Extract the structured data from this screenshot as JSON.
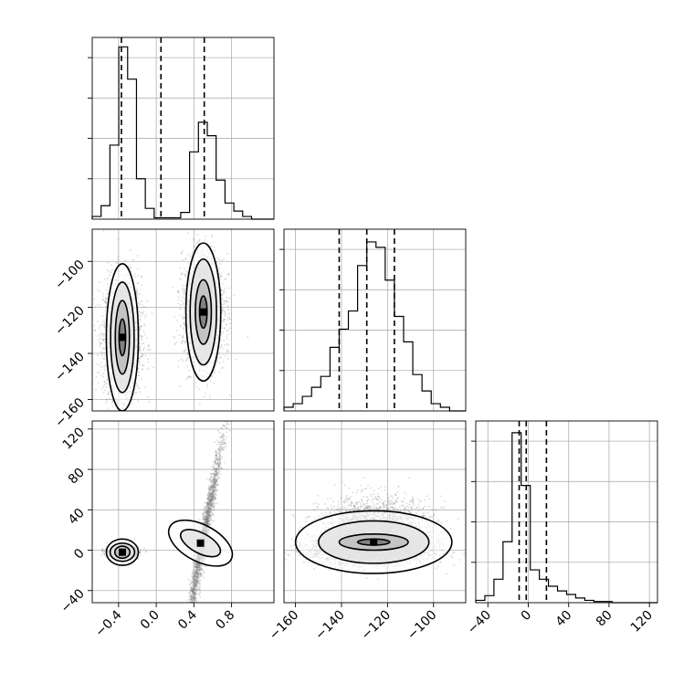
{
  "chart_data": {
    "type": "corner",
    "grid": true,
    "colors": {
      "line": "#000000",
      "grid": "#b0b0b0",
      "scatter": "#7a7a7a",
      "density_dark": "#000000"
    },
    "parameters": [
      {
        "index": 0,
        "range": [
          -0.68,
          1.25
        ],
        "ticks": [
          -0.4,
          0.0,
          0.4,
          0.8
        ],
        "tick_labels": [
          "−0.4",
          "0.0",
          "0.4",
          "0.8"
        ]
      },
      {
        "index": 1,
        "range": [
          -165,
          -86
        ],
        "ticks": [
          -160,
          -140,
          -120,
          -100
        ],
        "tick_labels": [
          "−160",
          "−140",
          "−120",
          "−100"
        ]
      },
      {
        "index": 2,
        "range": [
          -52,
          128
        ],
        "ticks": [
          -40,
          0,
          40,
          80,
          120
        ],
        "tick_labels": [
          "−40",
          "0",
          "40",
          "80",
          "120"
        ]
      }
    ],
    "histograms": [
      {
        "param": 0,
        "bin_edges": [
          -0.68,
          -0.586,
          -0.492,
          -0.398,
          -0.304,
          -0.21,
          -0.116,
          -0.022,
          0.072,
          0.166,
          0.26,
          0.354,
          0.448,
          0.542,
          0.636,
          0.73,
          0.824,
          0.918,
          1.012,
          1.106,
          1.25
        ],
        "counts": [
          2,
          10,
          55,
          128,
          104,
          30,
          8,
          1,
          1,
          1,
          5,
          50,
          72,
          62,
          29,
          12,
          6,
          2,
          0,
          0
        ],
        "ymax": 135,
        "quantiles": [
          -0.37,
          0.05,
          0.51
        ]
      },
      {
        "param": 1,
        "bin_edges": [
          -165,
          -161,
          -157,
          -153,
          -149,
          -145,
          -141,
          -137,
          -133,
          -129,
          -125,
          -121,
          -117,
          -113,
          -109,
          -105,
          -101,
          -97,
          -93,
          -89,
          -86
        ],
        "counts": [
          2,
          4,
          8,
          13,
          19,
          35,
          45,
          55,
          80,
          93,
          90,
          72,
          52,
          38,
          20,
          11,
          4,
          2,
          0,
          0
        ],
        "ymax": 100,
        "quantiles": [
          -141,
          -129,
          -117
        ]
      },
      {
        "param": 2,
        "bin_edges": [
          -52,
          -43,
          -34,
          -25,
          -16,
          -7,
          2,
          11,
          20,
          29,
          38,
          47,
          56,
          65,
          74,
          83,
          92,
          101,
          110,
          119,
          128
        ],
        "counts": [
          2,
          6,
          20,
          52,
          145,
          100,
          28,
          20,
          14,
          10,
          7,
          4,
          2,
          1,
          1,
          0,
          0,
          0,
          0,
          0
        ],
        "ymax": 155,
        "quantiles": [
          -9,
          -2,
          18
        ]
      }
    ],
    "scatter_panels": [
      {
        "x_param": 0,
        "y_param": 1,
        "clusters": [
          {
            "center": [
              -0.36,
              -133
            ],
            "spread": [
              0.1,
              13
            ],
            "rotation": 0
          },
          {
            "center": [
              0.5,
              -122
            ],
            "spread": [
              0.11,
              12
            ],
            "rotation": 0
          }
        ],
        "contours": [
          {
            "center": [
              -0.36,
              -133
            ],
            "levels": [
              [
                0.17,
                32
              ],
              [
                0.125,
                24
              ],
              [
                0.075,
                16
              ],
              [
                0.035,
                8
              ]
            ]
          },
          {
            "center": [
              0.5,
              -122
            ],
            "levels": [
              [
                0.185,
                30
              ],
              [
                0.14,
                23
              ],
              [
                0.085,
                14
              ],
              [
                0.04,
                7
              ]
            ]
          }
        ]
      },
      {
        "x_param": 0,
        "y_param": 2,
        "clusters": [
          {
            "center": [
              -0.36,
              -2
            ],
            "spread": [
              0.07,
              3
            ],
            "rotation": 0
          },
          {
            "center": [
              0.5,
              10
            ],
            "spread": [
              0.1,
              22
            ],
            "rotation": 0.72
          }
        ],
        "contours": [
          {
            "center": [
              -0.36,
              -2
            ],
            "levels": [
              [
                0.17,
                13
              ],
              [
                0.13,
                9
              ],
              [
                0.08,
                6
              ]
            ]
          },
          {
            "center": [
              0.47,
              7
            ],
            "levels": [
              [
                0.38,
                0.2
              ],
              [
                0.24,
                0.11
              ]
            ],
            "rotated": true
          }
        ]
      },
      {
        "x_param": 1,
        "y_param": 2,
        "clusters": [
          {
            "center": [
              -128,
              0
            ],
            "spread": [
              13,
              7
            ],
            "rotation": 0
          },
          {
            "center": [
              -125,
              22
            ],
            "spread": [
              12,
              15
            ],
            "rotation": 0
          }
        ],
        "contours": [
          {
            "center": [
              -126,
              8
            ],
            "levels": [
              [
                34,
                31
              ],
              [
                24,
                21
              ],
              [
                15,
                8
              ],
              [
                7,
                3
              ]
            ]
          }
        ]
      }
    ]
  }
}
